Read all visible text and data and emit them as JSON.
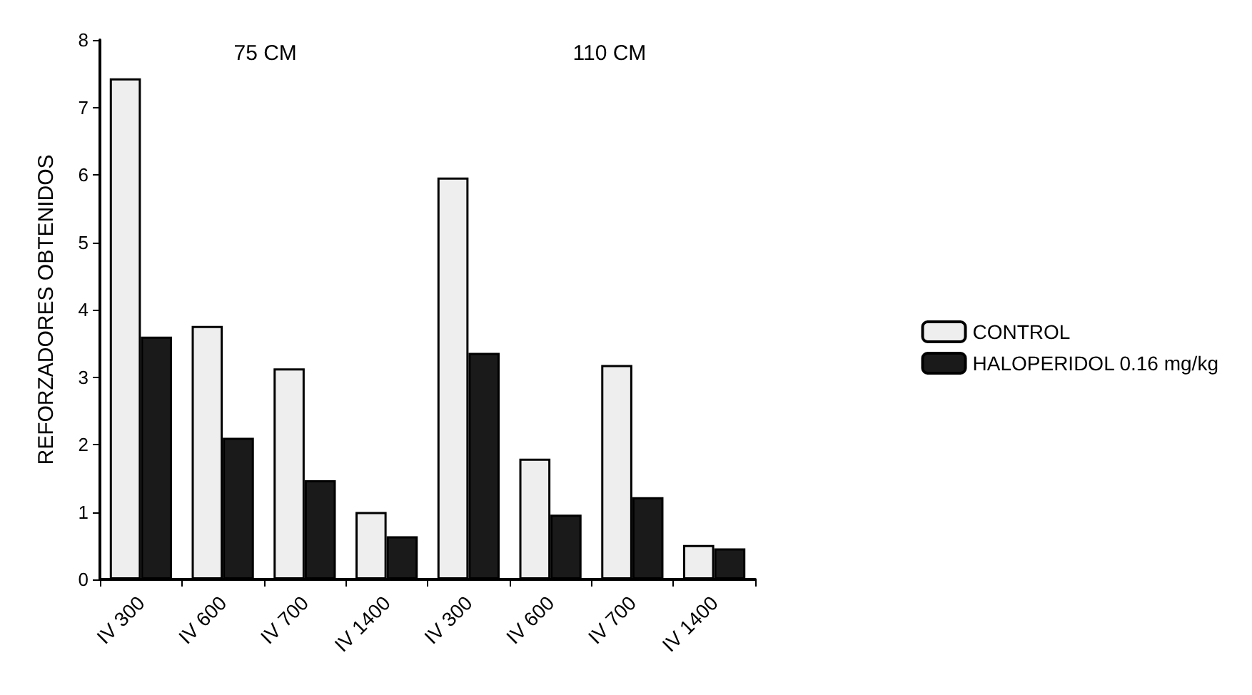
{
  "chart_data": {
    "type": "bar",
    "ylabel": "REFORZADORES OBTENIDOS",
    "categories": [
      "IV 300",
      "IV 600",
      "IV 700",
      "IV 1400",
      "IV 300",
      "IV 600",
      "IV 700",
      "IV 1400"
    ],
    "series": [
      {
        "name": "CONTROL",
        "color": "#eeeeee",
        "values": [
          7.43,
          3.76,
          3.13,
          1.0,
          5.96,
          1.79,
          3.18,
          0.51
        ]
      },
      {
        "name": "HALOPERIDOL 0.16 mg/kg",
        "color": "#1a1a1a",
        "values": [
          3.6,
          2.1,
          1.47,
          0.64,
          3.36,
          0.96,
          1.22,
          0.46
        ]
      }
    ],
    "ylim": [
      0,
      8
    ],
    "yticks": [
      0,
      1,
      2,
      3,
      4,
      5,
      6,
      7,
      8
    ],
    "grid": false,
    "legend": "right",
    "annotations": [
      "75 CM",
      "110 CM"
    ]
  }
}
